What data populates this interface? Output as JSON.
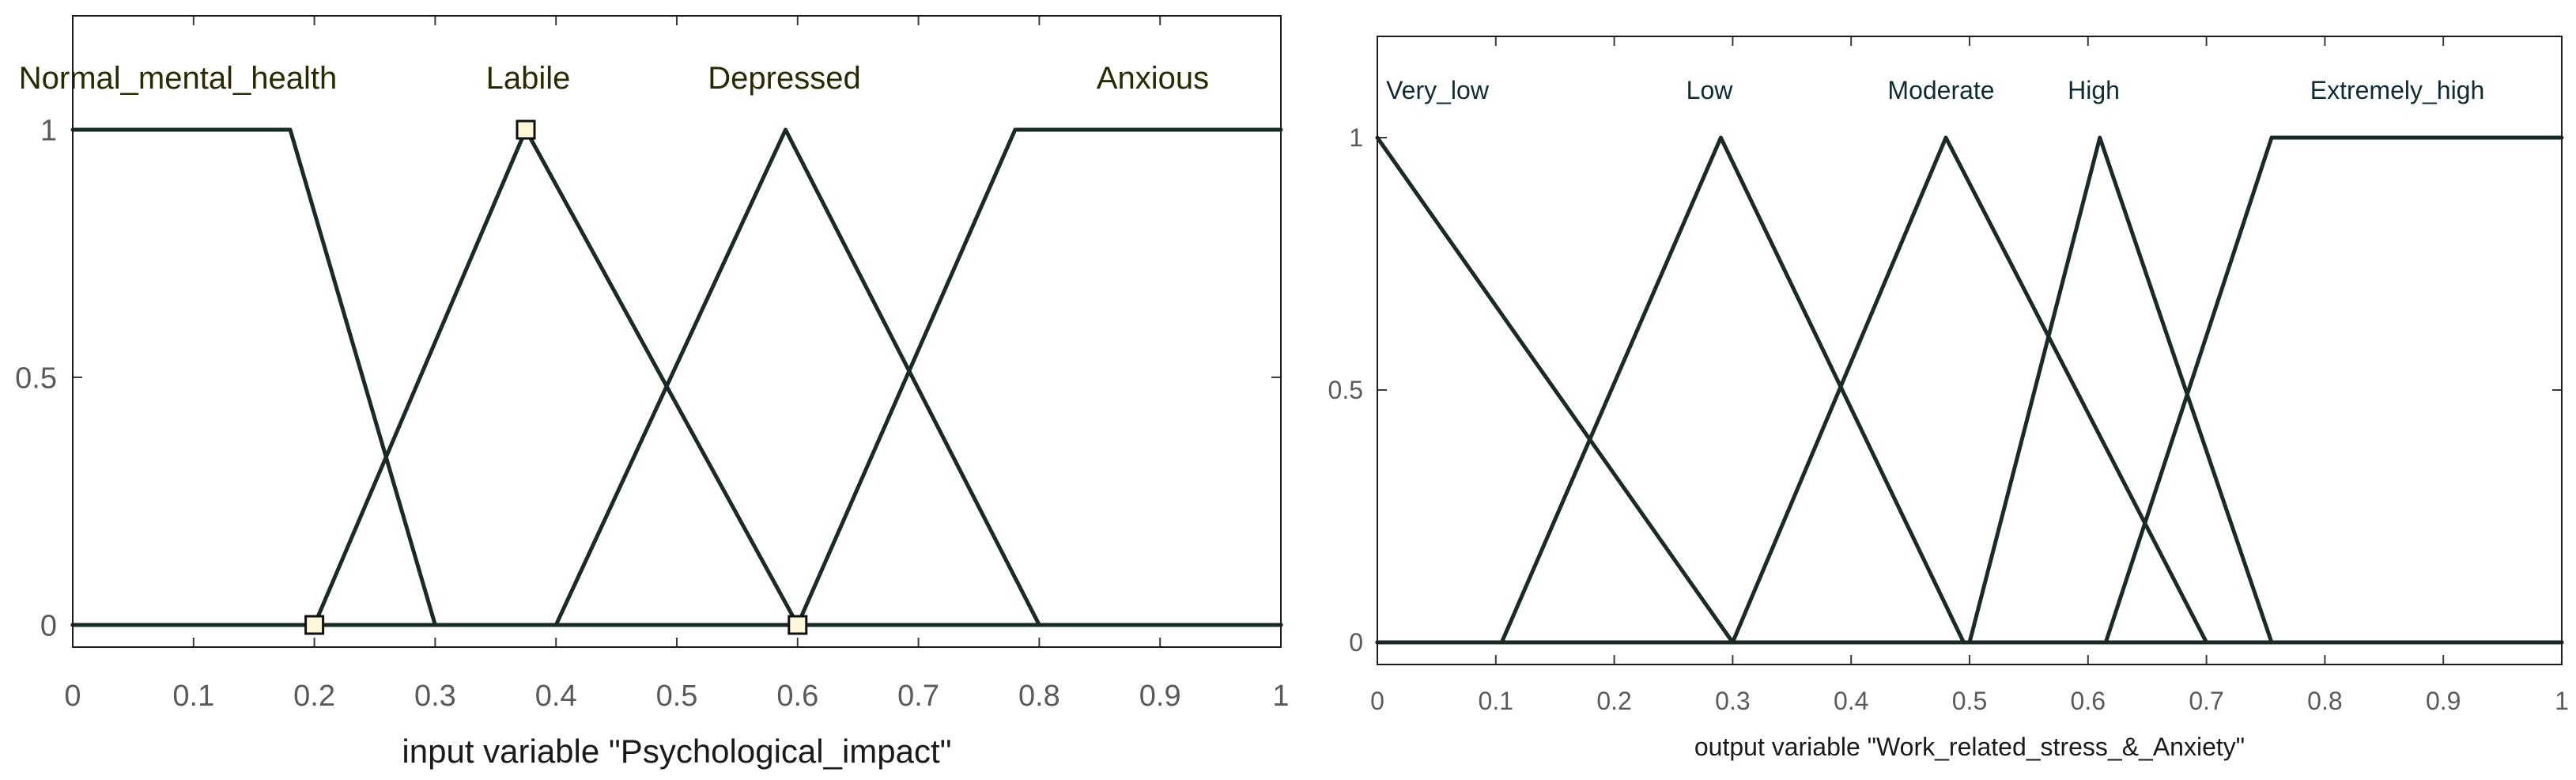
{
  "chart_data": [
    {
      "type": "line",
      "xlabel": "input variable \"Psychological_impact\"",
      "xlim": [
        0,
        1
      ],
      "ylim": [
        0,
        1
      ],
      "xticks": [
        "0",
        "0.1",
        "0.2",
        "0.3",
        "0.4",
        "0.5",
        "0.6",
        "0.7",
        "0.8",
        "0.9",
        "1"
      ],
      "yticks": [
        "0",
        "0.5",
        "1"
      ],
      "label_color": "#2a2a00",
      "series": [
        {
          "name": "Normal_mental_health",
          "x": [
            0,
            0.18,
            0.3,
            1
          ],
          "y": [
            1,
            1,
            0,
            0
          ]
        },
        {
          "name": "Labile",
          "x": [
            0,
            0.2,
            0.375,
            0.6,
            1
          ],
          "y": [
            0,
            0,
            1,
            0,
            0
          ]
        },
        {
          "name": "Depressed",
          "x": [
            0,
            0.4,
            0.59,
            0.8,
            1
          ],
          "y": [
            0,
            0,
            1,
            0,
            0
          ]
        },
        {
          "name": "Anxious",
          "x": [
            0,
            0.6,
            0.78,
            1
          ],
          "y": [
            0,
            0,
            1,
            1
          ]
        }
      ],
      "markers": [
        {
          "x": 0.2,
          "y": 0
        },
        {
          "x": 0.375,
          "y": 1
        },
        {
          "x": 0.6,
          "y": 0
        }
      ]
    },
    {
      "type": "line",
      "xlabel": "output variable \"Work_related_stress_&_Anxiety\"",
      "xlim": [
        0,
        1
      ],
      "ylim": [
        0,
        1
      ],
      "xticks": [
        "0",
        "0.1",
        "0.2",
        "0.3",
        "0.4",
        "0.5",
        "0.6",
        "0.7",
        "0.8",
        "0.9",
        "1"
      ],
      "yticks": [
        "0",
        "0.5",
        "1"
      ],
      "label_color": "#0f2a30",
      "series": [
        {
          "name": "Very_low",
          "x": [
            0,
            0.3,
            1
          ],
          "y": [
            1,
            0,
            0
          ]
        },
        {
          "name": "Low",
          "x": [
            0,
            0.105,
            0.29,
            0.495,
            1
          ],
          "y": [
            0,
            0,
            1,
            0,
            0
          ]
        },
        {
          "name": "Moderate",
          "x": [
            0,
            0.3,
            0.48,
            0.7,
            1
          ],
          "y": [
            0,
            0,
            1,
            0,
            0
          ]
        },
        {
          "name": "High",
          "x": [
            0,
            0.5,
            0.61,
            0.755,
            1
          ],
          "y": [
            0,
            0,
            1,
            0,
            0
          ]
        },
        {
          "name": "Extremely_high",
          "x": [
            0,
            0.615,
            0.755,
            1
          ],
          "y": [
            0,
            0,
            1,
            1
          ]
        }
      ],
      "markers": []
    }
  ]
}
